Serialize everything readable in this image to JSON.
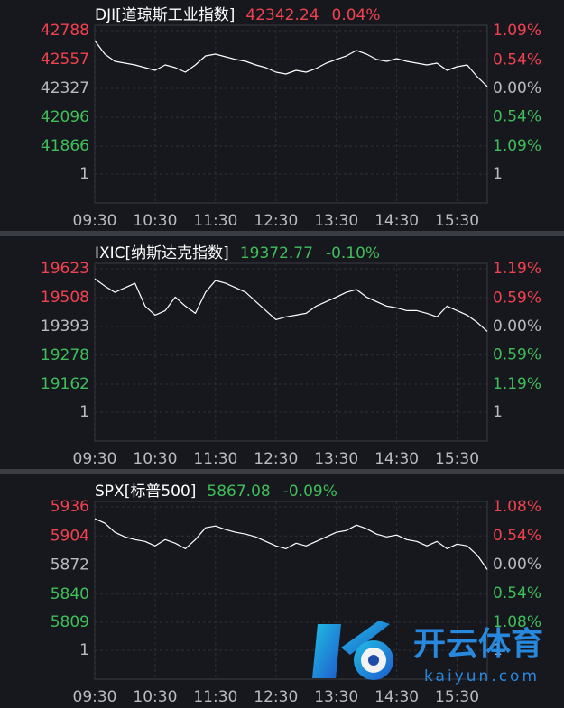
{
  "chart_data": [
    {
      "type": "line",
      "header": {
        "name": "DJI[道琼斯工业指数]",
        "last": "42342.24",
        "change": "0.04%",
        "color": "#f2414f"
      },
      "x": [
        "09:30",
        "09:40",
        "09:50",
        "10:00",
        "10:10",
        "10:20",
        "10:30",
        "10:40",
        "10:50",
        "11:00",
        "11:10",
        "11:20",
        "11:30",
        "11:40",
        "11:50",
        "12:00",
        "12:10",
        "12:20",
        "12:30",
        "12:40",
        "12:50",
        "13:00",
        "13:10",
        "13:20",
        "13:30",
        "13:40",
        "13:50",
        "14:00",
        "14:10",
        "14:20",
        "14:30",
        "14:40",
        "14:50",
        "15:00",
        "15:10",
        "15:20",
        "15:30",
        "15:40",
        "15:50",
        "16:00"
      ],
      "values": [
        42709,
        42601,
        42543,
        42529,
        42514,
        42493,
        42471,
        42514,
        42493,
        42457,
        42514,
        42586,
        42601,
        42579,
        42558,
        42543,
        42514,
        42493,
        42457,
        42442,
        42471,
        42457,
        42486,
        42529,
        42558,
        42586,
        42630,
        42601,
        42558,
        42543,
        42565,
        42543,
        42529,
        42514,
        42529,
        42471,
        42500,
        42514,
        42421,
        42342
      ],
      "color": "#ffffff",
      "ylim": [
        41866,
        42788
      ],
      "yticks": [
        42788,
        42557,
        42327,
        42096,
        41866
      ],
      "y2lim": [
        -1.09,
        1.09
      ],
      "y2ticks": [
        {
          "value": 1.09,
          "label": "1.09%"
        },
        {
          "value": 0.54,
          "label": "0.54%"
        },
        {
          "value": 0,
          "label": "0.00%"
        },
        {
          "value": -0.54,
          "label": "0.54%"
        },
        {
          "value": -1.09,
          "label": "1.09%"
        }
      ],
      "volume_yticks": [
        1
      ],
      "volume_y2ticks": [
        1
      ],
      "xticks": [
        "09:30",
        "10:30",
        "11:30",
        "12:30",
        "13:30",
        "14:30",
        "15:30"
      ],
      "grid": true,
      "up_color": "#f2414f",
      "down_color": "#3fbf5a",
      "flat_color": "#b8bbc2"
    },
    {
      "type": "line",
      "header": {
        "name": "IXIC[纳斯达克指数]",
        "last": "19372.77",
        "change": "-0.10%",
        "color": "#3fbf5a"
      },
      "x": [
        "09:30",
        "09:40",
        "09:50",
        "10:00",
        "10:10",
        "10:20",
        "10:30",
        "10:40",
        "10:50",
        "11:00",
        "11:10",
        "11:20",
        "11:30",
        "11:40",
        "11:50",
        "12:00",
        "12:10",
        "12:20",
        "12:30",
        "12:40",
        "12:50",
        "13:00",
        "13:10",
        "13:20",
        "13:30",
        "13:40",
        "13:50",
        "14:00",
        "14:10",
        "14:20",
        "14:30",
        "14:40",
        "14:50",
        "15:00",
        "15:10",
        "15:20",
        "15:30",
        "15:40",
        "15:50",
        "16:00"
      ],
      "values": [
        19583,
        19554,
        19529,
        19547,
        19565,
        19474,
        19438,
        19456,
        19510,
        19474,
        19445,
        19529,
        19576,
        19565,
        19547,
        19529,
        19492,
        19456,
        19420,
        19431,
        19438,
        19445,
        19474,
        19492,
        19510,
        19529,
        19540,
        19510,
        19492,
        19474,
        19467,
        19456,
        19456,
        19445,
        19431,
        19474,
        19456,
        19438,
        19409,
        19373
      ],
      "color": "#ffffff",
      "ylim": [
        19162,
        19623
      ],
      "yticks": [
        19623,
        19508,
        19393,
        19278,
        19162
      ],
      "y2lim": [
        -1.19,
        1.19
      ],
      "y2ticks": [
        {
          "value": 1.19,
          "label": "1.19%"
        },
        {
          "value": 0.59,
          "label": "0.59%"
        },
        {
          "value": 0,
          "label": "0.00%"
        },
        {
          "value": -0.59,
          "label": "0.59%"
        },
        {
          "value": -1.19,
          "label": "1.19%"
        }
      ],
      "volume_yticks": [
        1
      ],
      "volume_y2ticks": [
        1
      ],
      "xticks": [
        "09:30",
        "10:30",
        "11:30",
        "12:30",
        "13:30",
        "14:30",
        "15:30"
      ],
      "grid": true,
      "up_color": "#f2414f",
      "down_color": "#3fbf5a",
      "flat_color": "#b8bbc2"
    },
    {
      "type": "line",
      "header": {
        "name": "SPX[标普500]",
        "last": "5867.08",
        "change": "-0.09%",
        "color": "#3fbf5a"
      },
      "x": [
        "09:30",
        "09:40",
        "09:50",
        "10:00",
        "10:10",
        "10:20",
        "10:30",
        "10:40",
        "10:50",
        "11:00",
        "11:10",
        "11:20",
        "11:30",
        "11:40",
        "11:50",
        "12:00",
        "12:10",
        "12:20",
        "12:30",
        "12:40",
        "12:50",
        "13:00",
        "13:10",
        "13:20",
        "13:30",
        "13:40",
        "13:50",
        "14:00",
        "14:10",
        "14:20",
        "14:30",
        "14:40",
        "14:50",
        "15:00",
        "15:10",
        "15:20",
        "15:30",
        "15:40",
        "15:50",
        "16:00"
      ],
      "values": [
        5923,
        5918,
        5908,
        5903,
        5900,
        5898,
        5893,
        5900,
        5896,
        5890,
        5900,
        5913,
        5915,
        5911,
        5908,
        5906,
        5903,
        5898,
        5893,
        5890,
        5896,
        5893,
        5898,
        5903,
        5908,
        5910,
        5916,
        5912,
        5906,
        5903,
        5905,
        5900,
        5898,
        5893,
        5898,
        5890,
        5895,
        5893,
        5883,
        5867
      ],
      "color": "#ffffff",
      "ylim": [
        5809,
        5936
      ],
      "yticks": [
        5936,
        5904,
        5872,
        5840,
        5809
      ],
      "y2lim": [
        -1.08,
        1.08
      ],
      "y2ticks": [
        {
          "value": 1.08,
          "label": "1.08%"
        },
        {
          "value": 0.54,
          "label": "0.54%"
        },
        {
          "value": 0,
          "label": "0.00%"
        },
        {
          "value": -0.54,
          "label": "0.54%"
        },
        {
          "value": -1.08,
          "label": "1.08%"
        }
      ],
      "volume_yticks": [
        1
      ],
      "volume_y2ticks": [
        1
      ],
      "xticks": [
        "09:30",
        "10:30",
        "11:30",
        "12:30",
        "13:30",
        "14:30",
        "15:30"
      ],
      "grid": true,
      "up_color": "#f2414f",
      "down_color": "#3fbf5a",
      "flat_color": "#b8bbc2"
    }
  ],
  "watermark": {
    "title": "开云体育",
    "subtitle": "kaiyun.com"
  }
}
